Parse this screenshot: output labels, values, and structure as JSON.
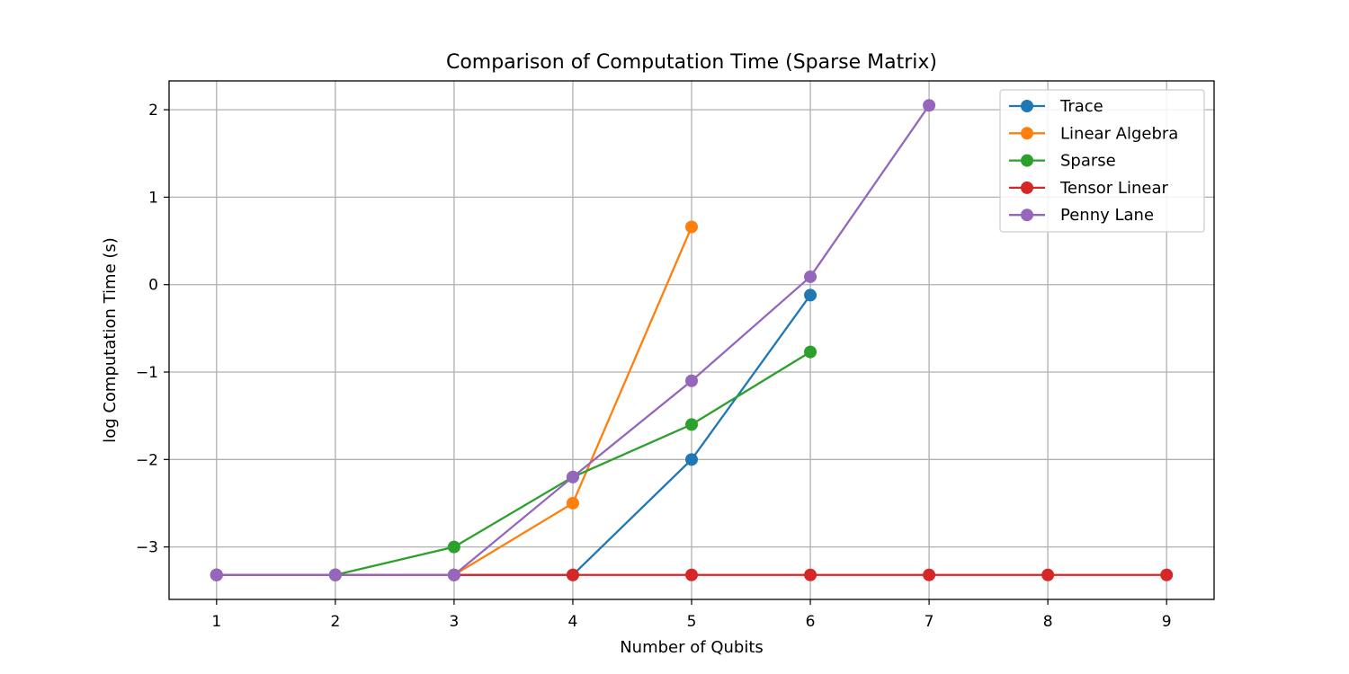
{
  "chart_data": {
    "type": "line",
    "title": "Comparison of Computation Time (Sparse Matrix)",
    "xlabel": "Number of Qubits",
    "ylabel": "log Computation Time (s)",
    "xlim": [
      0.6,
      9.4
    ],
    "ylim": [
      -3.6,
      2.33
    ],
    "xticks": [
      1,
      2,
      3,
      4,
      5,
      6,
      7,
      8,
      9
    ],
    "yticks": [
      -3,
      -2,
      -1,
      0,
      1,
      2
    ],
    "ytick_labels": [
      "−3",
      "−2",
      "−1",
      "0",
      "1",
      "2"
    ],
    "grid": true,
    "legend_position": "top-right",
    "series": [
      {
        "name": "Trace",
        "color": "#1f77b4",
        "x": [
          1,
          2,
          3,
          4,
          5,
          6
        ],
        "y": [
          -3.32,
          -3.32,
          -3.32,
          -3.32,
          -2.0,
          -0.12
        ]
      },
      {
        "name": "Linear Algebra",
        "color": "#ff7f0e",
        "x": [
          1,
          2,
          3,
          4,
          5
        ],
        "y": [
          -3.32,
          -3.32,
          -3.32,
          -2.5,
          0.66
        ]
      },
      {
        "name": "Sparse",
        "color": "#2ca02c",
        "x": [
          1,
          2,
          3,
          4,
          5,
          6
        ],
        "y": [
          -3.32,
          -3.32,
          -3.0,
          -2.2,
          -1.6,
          -0.77
        ]
      },
      {
        "name": "Tensor Linear",
        "color": "#d62728",
        "x": [
          1,
          2,
          3,
          4,
          5,
          6,
          7,
          8,
          9
        ],
        "y": [
          -3.32,
          -3.32,
          -3.32,
          -3.32,
          -3.32,
          -3.32,
          -3.32,
          -3.32,
          -3.32
        ]
      },
      {
        "name": "Penny Lane",
        "color": "#9467bd",
        "x": [
          1,
          2,
          3,
          4,
          5,
          6,
          7
        ],
        "y": [
          -3.32,
          -3.32,
          -3.32,
          -2.2,
          -1.1,
          0.09,
          2.05
        ]
      }
    ]
  }
}
